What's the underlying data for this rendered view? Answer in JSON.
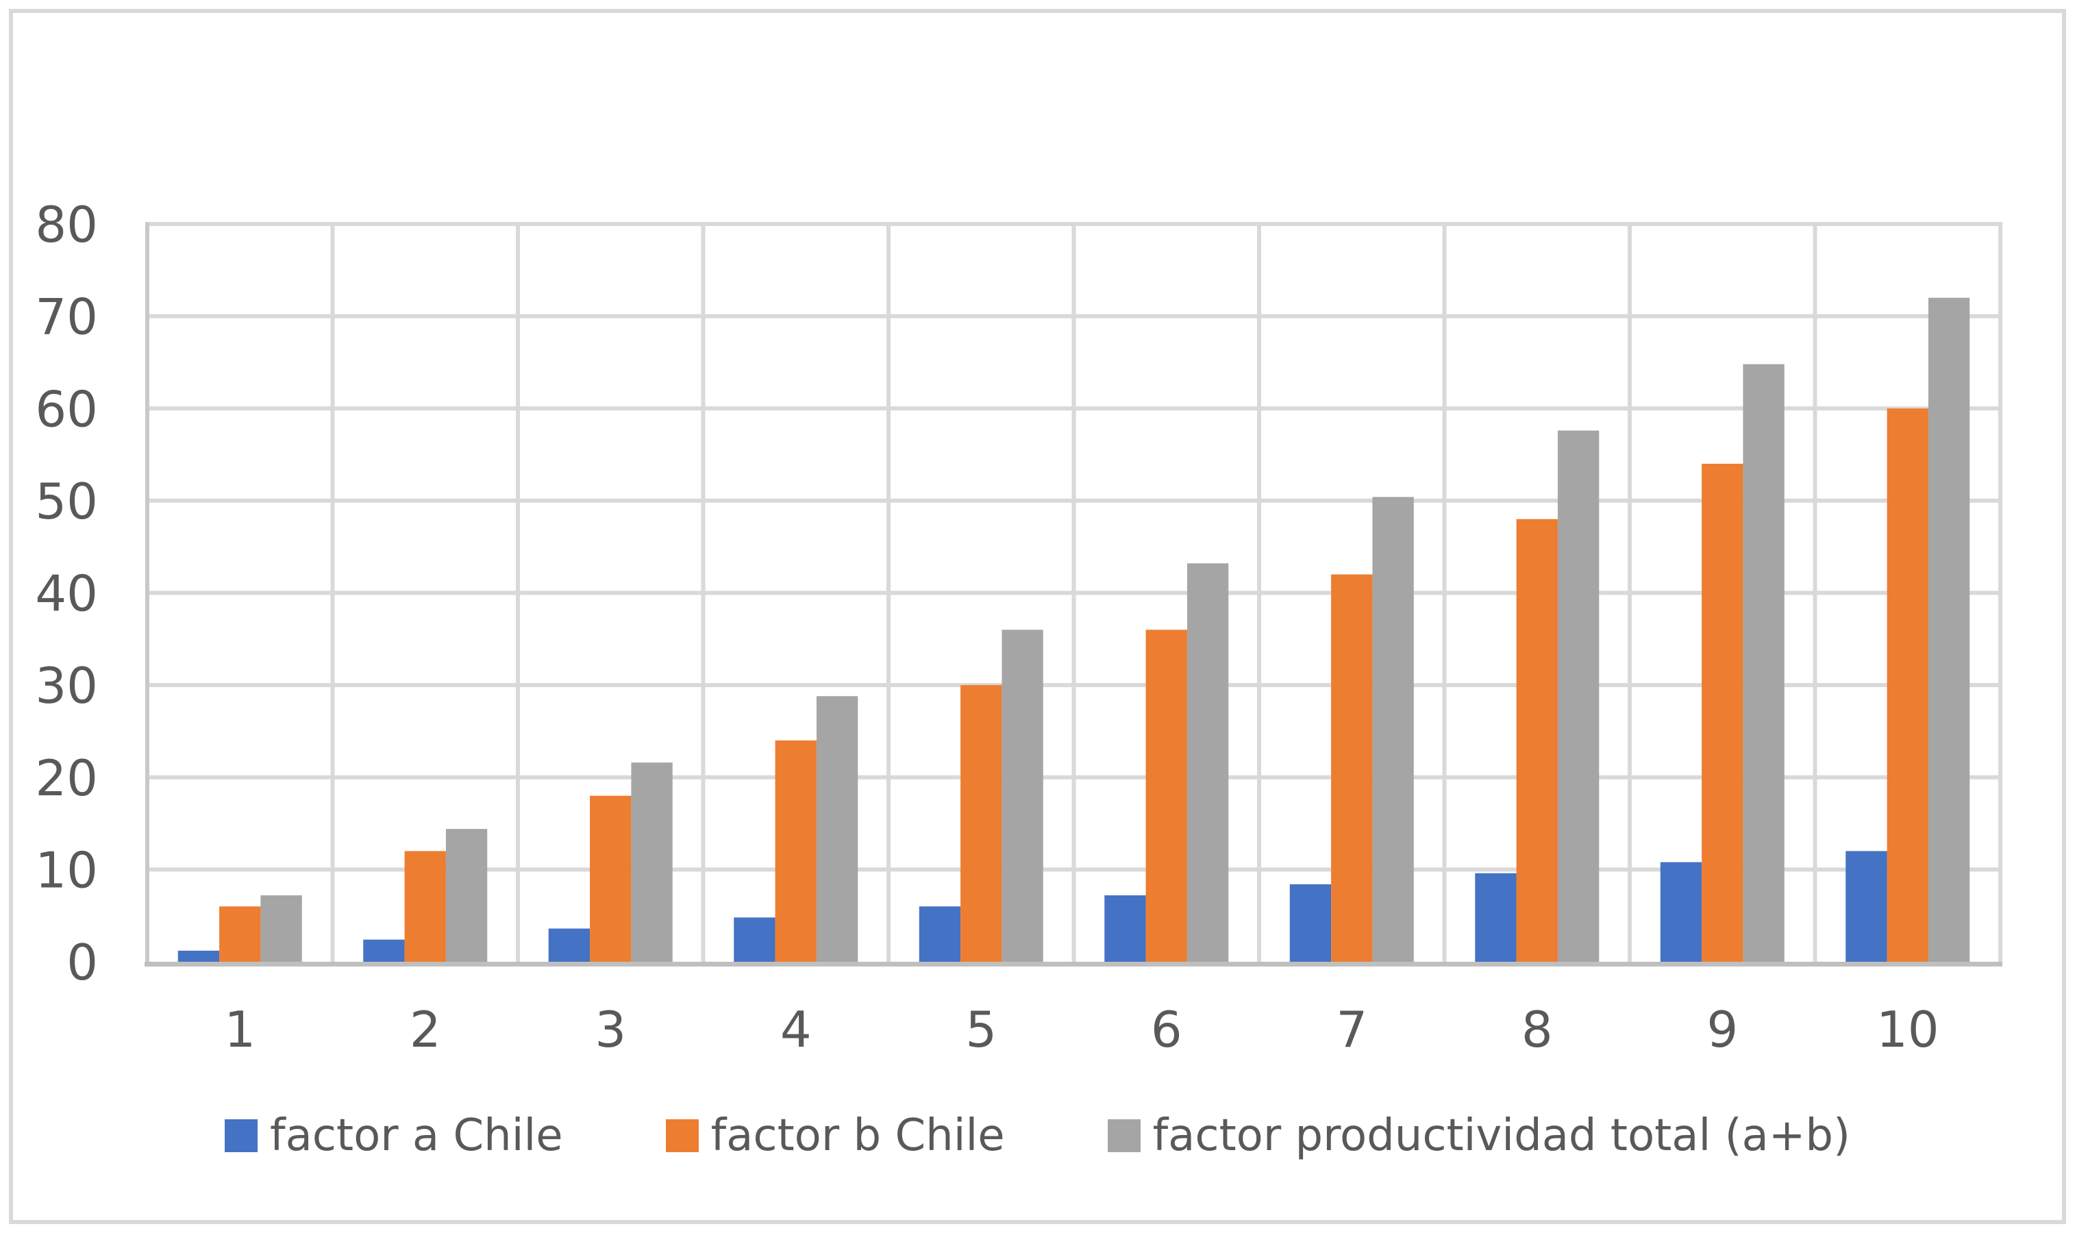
{
  "page": {
    "background": "#FFFFFF",
    "border_color": "#D9D9D9"
  },
  "chart_data": {
    "type": "bar",
    "title": "",
    "categories": [
      "1",
      "2",
      "3",
      "4",
      "5",
      "6",
      "7",
      "8",
      "9",
      "10"
    ],
    "series": [
      {
        "name": "factor a Chile",
        "color": "#4472C4",
        "values": [
          1.2,
          2.4,
          3.6,
          4.8,
          6,
          7.2,
          8.4,
          9.6,
          10.8,
          12
        ]
      },
      {
        "name": "factor b Chile",
        "color": "#ED7D31",
        "values": [
          6,
          12,
          18,
          24,
          30,
          36,
          42,
          48,
          54,
          60
        ]
      },
      {
        "name": "factor productividad total (a+b)",
        "color": "#A5A5A5",
        "values": [
          7.2,
          14.4,
          21.6,
          28.8,
          36,
          43.2,
          50.4,
          57.6,
          64.8,
          72
        ]
      }
    ],
    "xlabel": "",
    "ylabel": "",
    "ylim": [
      0,
      80
    ],
    "yticks": [
      0,
      10,
      20,
      30,
      40,
      50,
      60,
      70,
      80
    ],
    "grid": true,
    "legend_position": "bottom",
    "axis_text_color": "#595959",
    "gridline_color": "#D9D9D9",
    "axis_line_color": "#BFBFBF",
    "y_axis_line_color": "#C9C9C9"
  }
}
